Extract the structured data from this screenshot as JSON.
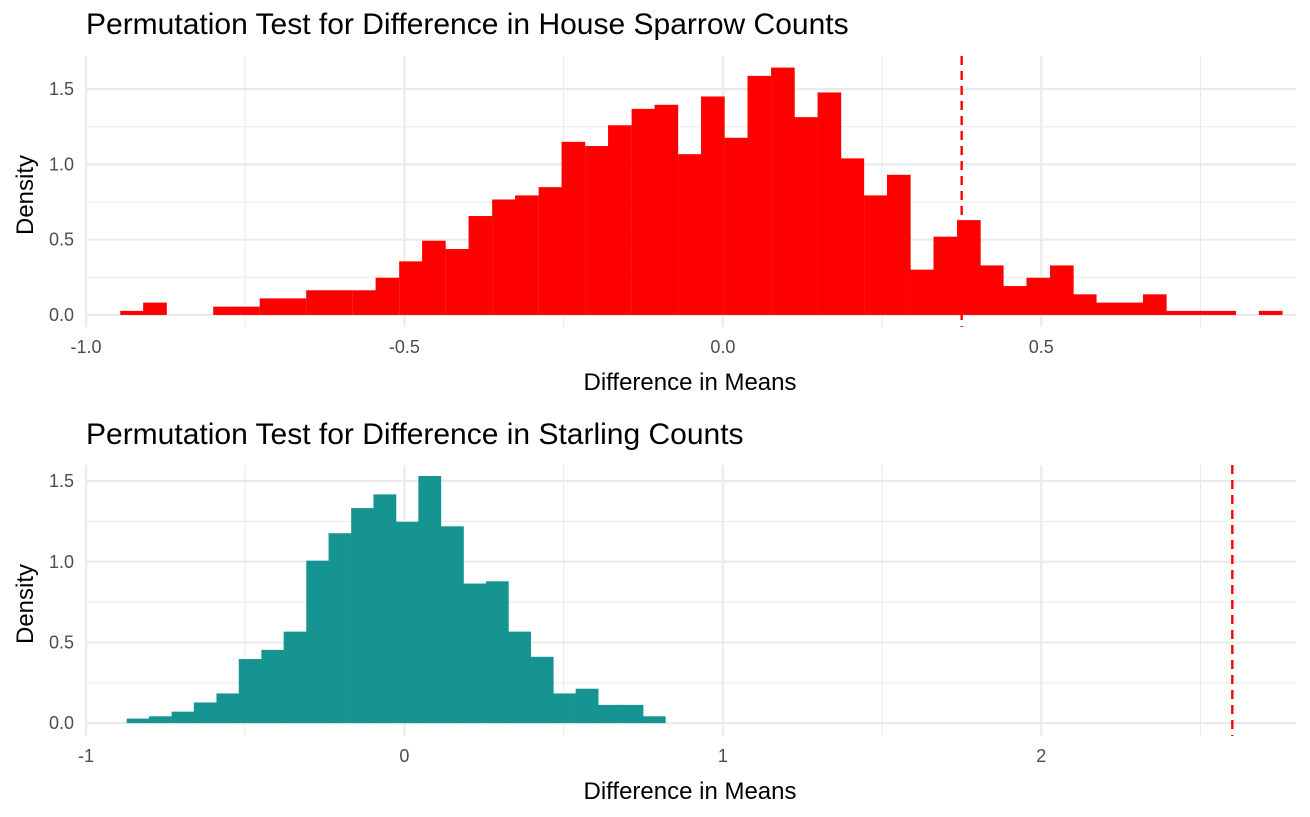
{
  "chart_data": [
    {
      "type": "bar",
      "title": "Permutation Test for Difference in House Sparrow Counts",
      "xlabel": "Difference in Means",
      "ylabel": "Density",
      "bar_color": "#FF0000",
      "line_color": "#FF0000",
      "xlim": [
        -1.0,
        0.9
      ],
      "ylim": [
        -0.08,
        1.72
      ],
      "x_ticks": [
        -1.0,
        -0.5,
        0.0,
        0.5
      ],
      "x_tick_labels": [
        "-1.0",
        "-0.5",
        "0.0",
        "0.5"
      ],
      "y_ticks": [
        0.0,
        0.5,
        1.0,
        1.5
      ],
      "y_tick_labels": [
        "0.0",
        "0.5",
        "1.0",
        "1.5"
      ],
      "bin_width": 0.0365,
      "bins": [
        {
          "x": -0.928,
          "density": 0.027
        },
        {
          "x": -0.892,
          "density": 0.082
        },
        {
          "x": -0.782,
          "density": 0.055
        },
        {
          "x": -0.746,
          "density": 0.055
        },
        {
          "x": -0.709,
          "density": 0.11
        },
        {
          "x": -0.673,
          "density": 0.11
        },
        {
          "x": -0.636,
          "density": 0.164
        },
        {
          "x": -0.6,
          "density": 0.164
        },
        {
          "x": -0.563,
          "density": 0.164
        },
        {
          "x": -0.527,
          "density": 0.247
        },
        {
          "x": -0.49,
          "density": 0.356
        },
        {
          "x": -0.454,
          "density": 0.493
        },
        {
          "x": -0.417,
          "density": 0.438
        },
        {
          "x": -0.381,
          "density": 0.657
        },
        {
          "x": -0.344,
          "density": 0.767
        },
        {
          "x": -0.308,
          "density": 0.794
        },
        {
          "x": -0.271,
          "density": 0.849
        },
        {
          "x": -0.235,
          "density": 1.15
        },
        {
          "x": -0.198,
          "density": 1.122
        },
        {
          "x": -0.162,
          "density": 1.26
        },
        {
          "x": -0.125,
          "density": 1.369
        },
        {
          "x": -0.089,
          "density": 1.396
        },
        {
          "x": -0.052,
          "density": 1.068
        },
        {
          "x": -0.016,
          "density": 1.451
        },
        {
          "x": 0.021,
          "density": 1.177
        },
        {
          "x": 0.057,
          "density": 1.588
        },
        {
          "x": 0.094,
          "density": 1.643
        },
        {
          "x": 0.13,
          "density": 1.314
        },
        {
          "x": 0.167,
          "density": 1.478
        },
        {
          "x": 0.203,
          "density": 1.04
        },
        {
          "x": 0.24,
          "density": 0.794
        },
        {
          "x": 0.276,
          "density": 0.931
        },
        {
          "x": 0.313,
          "density": 0.301
        },
        {
          "x": 0.349,
          "density": 0.52
        },
        {
          "x": 0.386,
          "density": 0.63
        },
        {
          "x": 0.422,
          "density": 0.329
        },
        {
          "x": 0.459,
          "density": 0.192
        },
        {
          "x": 0.495,
          "density": 0.247
        },
        {
          "x": 0.532,
          "density": 0.329
        },
        {
          "x": 0.568,
          "density": 0.137
        },
        {
          "x": 0.605,
          "density": 0.082
        },
        {
          "x": 0.641,
          "density": 0.082
        },
        {
          "x": 0.678,
          "density": 0.137
        },
        {
          "x": 0.714,
          "density": 0.027
        },
        {
          "x": 0.751,
          "density": 0.027
        },
        {
          "x": 0.787,
          "density": 0.027
        },
        {
          "x": 0.86,
          "density": 0.027
        }
      ],
      "observed_diff": 0.375
    },
    {
      "type": "bar",
      "title": "Permutation Test for Difference in Starling Counts",
      "xlabel": "Difference in Means",
      "ylabel": "Density",
      "bar_color": "#159492",
      "line_color": "#FF0000",
      "xlim": [
        -1.0,
        2.8
      ],
      "ylim": [
        -0.08,
        1.6
      ],
      "x_ticks": [
        -1,
        0,
        1,
        2
      ],
      "x_tick_labels": [
        "-1",
        "0",
        "1",
        "2"
      ],
      "y_ticks": [
        0.0,
        0.5,
        1.0,
        1.5
      ],
      "y_tick_labels": [
        "0.0",
        "0.5",
        "1.0",
        "1.5"
      ],
      "bin_width": 0.0705,
      "bins": [
        {
          "x": -0.837,
          "density": 0.028
        },
        {
          "x": -0.767,
          "density": 0.042
        },
        {
          "x": -0.696,
          "density": 0.071
        },
        {
          "x": -0.626,
          "density": 0.128
        },
        {
          "x": -0.555,
          "density": 0.184
        },
        {
          "x": -0.485,
          "density": 0.397
        },
        {
          "x": -0.414,
          "density": 0.454
        },
        {
          "x": -0.344,
          "density": 0.567
        },
        {
          "x": -0.273,
          "density": 1.007
        },
        {
          "x": -0.203,
          "density": 1.177
        },
        {
          "x": -0.132,
          "density": 1.333
        },
        {
          "x": -0.062,
          "density": 1.418
        },
        {
          "x": 0.009,
          "density": 1.248
        },
        {
          "x": 0.079,
          "density": 1.532
        },
        {
          "x": 0.15,
          "density": 1.22
        },
        {
          "x": 0.22,
          "density": 0.865
        },
        {
          "x": 0.291,
          "density": 0.879
        },
        {
          "x": 0.361,
          "density": 0.567
        },
        {
          "x": 0.432,
          "density": 0.411
        },
        {
          "x": 0.502,
          "density": 0.184
        },
        {
          "x": 0.573,
          "density": 0.213
        },
        {
          "x": 0.643,
          "density": 0.113
        },
        {
          "x": 0.714,
          "density": 0.113
        },
        {
          "x": 0.784,
          "density": 0.042
        }
      ],
      "observed_diff": 2.6
    }
  ]
}
